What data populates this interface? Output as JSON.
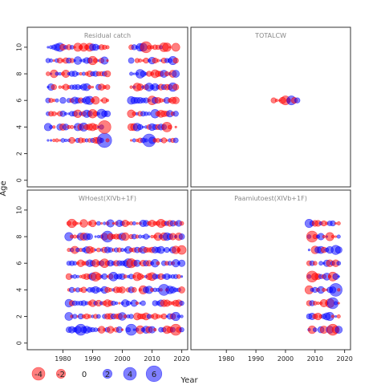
{
  "chart_data": {
    "type": "scatter",
    "xlabel": "Year",
    "ylabel": "Age",
    "xlim": [
      1968,
      2022
    ],
    "ylim": [
      -0.5,
      11.5
    ],
    "x_ticks": [
      1980,
      1990,
      2000,
      2010,
      2020
    ],
    "y_ticks": [
      0,
      2,
      4,
      6,
      8,
      10
    ],
    "positive_color": "#0000ff",
    "negative_color": "#ff0000",
    "legend": {
      "values": [
        -4,
        -2,
        0,
        2,
        4,
        6
      ],
      "labels": [
        "-4",
        "-2",
        "0",
        "2",
        "4",
        "6"
      ]
    },
    "panels": [
      {
        "title": "Residual catch",
        "year_ranges": [
          [
            1975,
            1995
          ],
          [
            2003,
            2018
          ]
        ],
        "ages": [
          3,
          4,
          5,
          6,
          7,
          8,
          9,
          10
        ],
        "notable_points": [
          {
            "year": 1994,
            "age": 3,
            "residual": 5
          },
          {
            "year": 1994,
            "age": 4,
            "residual": -4
          },
          {
            "year": 1974,
            "age": 8,
            "residual": 3
          },
          {
            "year": 2008,
            "age": 10,
            "residual": -3
          },
          {
            "year": 2009,
            "age": 3,
            "residual": 4
          }
        ]
      },
      {
        "title": "TOTALCW",
        "year_ranges": [
          [
            1996,
            2004
          ]
        ],
        "ages": [
          6
        ],
        "notable_points": [
          {
            "year": 2000,
            "age": 6,
            "residual": -2
          },
          {
            "year": 2002,
            "age": 6,
            "residual": 2
          }
        ]
      },
      {
        "title": "WHoest(XIVb+1F)",
        "year_ranges": [
          [
            1982,
            2020
          ]
        ],
        "ages": [
          1,
          2,
          3,
          4,
          5,
          6,
          7,
          8,
          9
        ],
        "notable_points": [
          {
            "year": 1995,
            "age": 8,
            "residual": 3
          },
          {
            "year": 1986,
            "age": 1,
            "residual": 3
          },
          {
            "year": 2003,
            "age": 1,
            "residual": 3
          },
          {
            "year": 2014,
            "age": 4,
            "residual": 3
          },
          {
            "year": 2018,
            "age": 1,
            "residual": -3
          }
        ]
      },
      {
        "title": "Paamiutoest(XIVb+1F)",
        "year_ranges": [
          [
            2008,
            2018
          ]
        ],
        "ages": [
          1,
          2,
          3,
          4,
          5,
          6,
          7,
          8,
          9
        ],
        "notable_points": [
          {
            "year": 2009,
            "age": 8,
            "residual": -3
          },
          {
            "year": 2009,
            "age": 5,
            "residual": -3
          },
          {
            "year": 2017,
            "age": 4,
            "residual": 4
          },
          {
            "year": 2016,
            "age": 3,
            "residual": 3
          },
          {
            "year": 2016,
            "age": 1,
            "residual": -3
          }
        ]
      }
    ]
  }
}
